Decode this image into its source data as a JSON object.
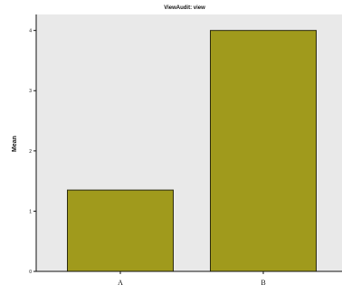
{
  "chart_data": {
    "type": "bar",
    "title": "ViewAudit: view",
    "xlabel": "",
    "ylabel": "Mean",
    "categories": [
      "A",
      "B"
    ],
    "values": [
      1.35,
      4.0
    ],
    "ylim": [
      0,
      4.04
    ],
    "yticks": [
      0,
      1,
      2,
      3,
      4
    ],
    "grid": false,
    "legend": "none",
    "colors": {
      "bar_fill": "#a09a1c",
      "bar_stroke": "#2b2a10",
      "plot_background": "#e9e9e9",
      "axis": "#111111"
    }
  }
}
